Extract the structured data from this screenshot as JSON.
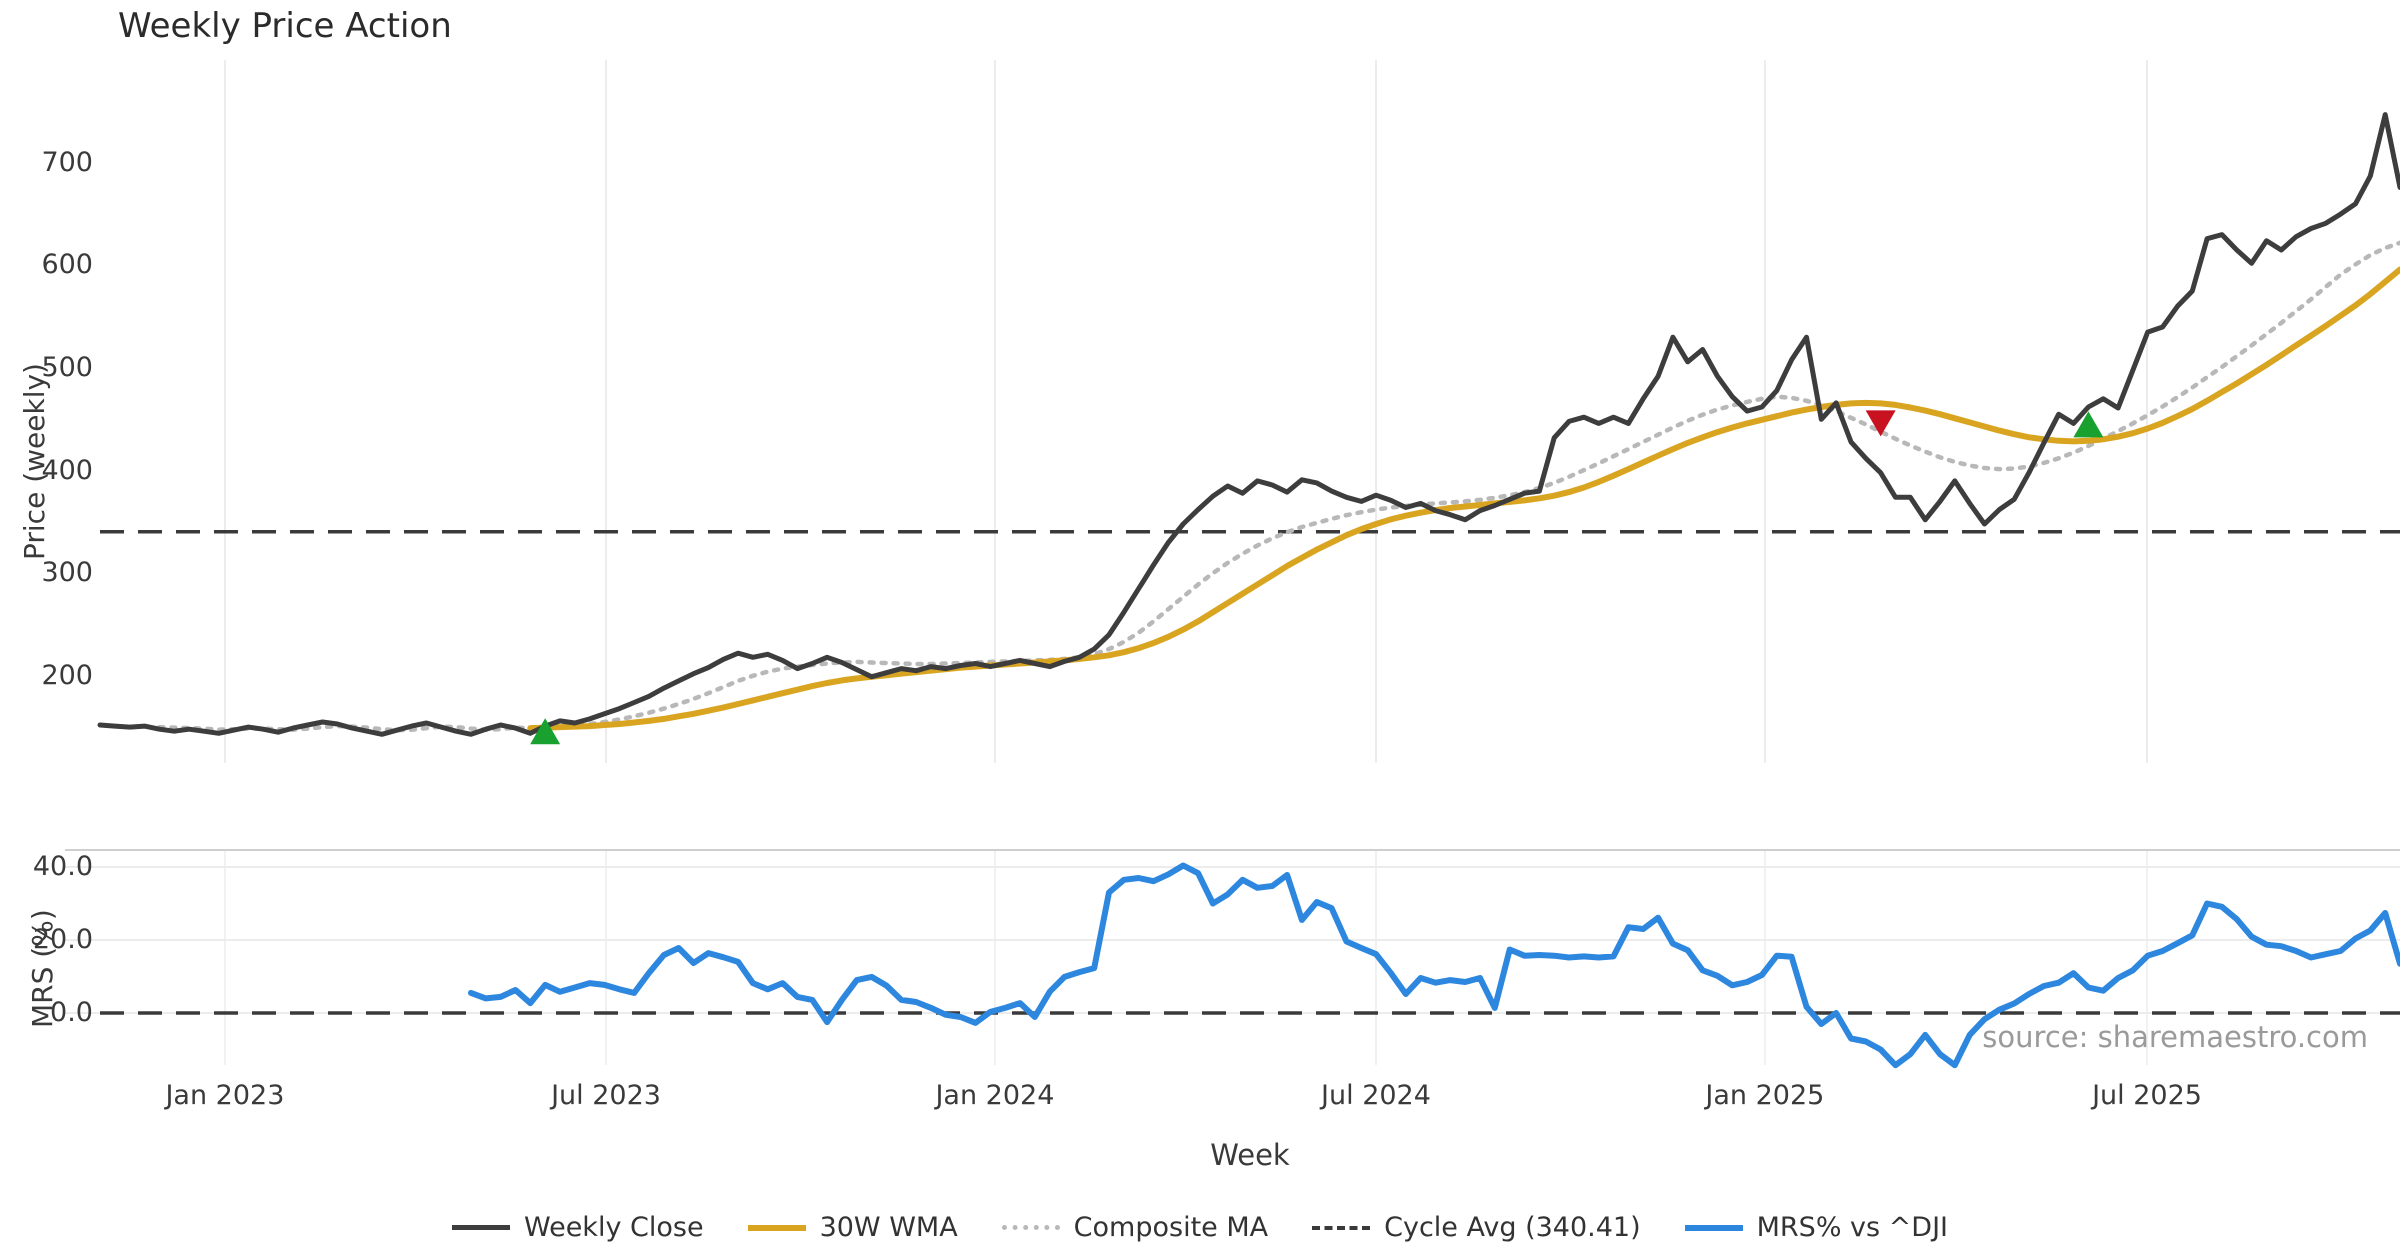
{
  "title": "Weekly Price Action",
  "source_note": "source: sharemaestro.com",
  "colors": {
    "close": "#3d3d3d",
    "wma": "#d9a521",
    "composite": "#b8b8b8",
    "cycle_avg": "#3a3a3a",
    "mrs": "#2e87de",
    "buy_marker": "#18a12e",
    "sell_marker": "#c81220",
    "grid": "#ececec",
    "grid_faint": "#f1f1f1",
    "panel_border": "#cfcfcf",
    "tick_text": "#3a3a3a"
  },
  "legend": {
    "items": [
      {
        "label": "Weekly Close",
        "swatch": "sw-close"
      },
      {
        "label": "30W WMA",
        "swatch": "sw-wma"
      },
      {
        "label": "Composite MA",
        "swatch": "sw-comp"
      },
      {
        "label": "Cycle Avg (340.41)",
        "swatch": "sw-cycle"
      },
      {
        "label": "MRS% vs ^DJI",
        "swatch": "sw-mrs"
      }
    ]
  },
  "chart_data": {
    "type": "line",
    "xlabel": "Week",
    "x_unit": "weekly",
    "n_weeks": 156,
    "x_range_note": "weekly data from early Nov 2022 to late Oct 2025",
    "x_ticks": [
      {
        "label": "Jan 2023",
        "week": 8.42
      },
      {
        "label": "Jul 2023",
        "week": 34.1
      },
      {
        "label": "Jan 2024",
        "week": 60.31
      },
      {
        "label": "Jul 2024",
        "week": 85.99
      },
      {
        "label": "Jan 2025",
        "week": 112.2
      },
      {
        "label": "Jul 2025",
        "week": 137.95
      }
    ],
    "panels": [
      {
        "name": "price",
        "ylabel": "Price (weekly)",
        "ylim": [
          115,
          800
        ],
        "yticks": [
          200,
          300,
          400,
          500,
          600,
          700
        ],
        "grid": "vertical",
        "cycle_avg": 340.41,
        "series": [
          {
            "name": "Weekly Close",
            "style": "solid",
            "width": 5,
            "color_key": "close",
            "start_week": 0,
            "values": [
              152,
              151,
              150,
              151,
              148,
              146,
              148,
              146,
              144,
              147,
              150,
              148,
              145,
              149,
              152,
              155,
              153,
              149,
              146,
              143,
              147,
              151,
              154,
              150,
              146,
              143,
              148,
              152,
              149,
              144,
              151,
              156,
              154,
              158,
              163,
              168,
              174,
              180,
              188,
              195,
              202,
              208,
              216,
              222,
              218,
              221,
              215,
              207,
              212,
              218,
              213,
              206,
              199,
              203,
              207,
              205,
              209,
              207,
              210,
              212,
              209,
              212,
              215,
              212,
              209,
              214,
              218,
              226,
              240,
              262,
              285,
              308,
              330,
              348,
              362,
              375,
              385,
              378,
              390,
              386,
              379,
              391,
              388,
              380,
              374,
              370,
              376,
              371,
              364,
              368,
              361,
              357,
              352,
              361,
              366,
              372,
              378,
              380,
              432,
              448,
              452,
              446,
              452,
              446,
              470,
              492,
              530,
              506,
              518,
              492,
              472,
              458,
              462,
              478,
              508,
              530,
              450,
              466,
              428,
              412,
              398,
              374,
              374,
              352,
              370,
              390,
              368,
              348,
              362,
              372,
              398,
              427,
              455,
              446,
              462,
              470,
              461,
              498,
              535,
              540,
              560,
              575,
              626,
              630,
              615,
              602,
              624,
              615,
              628,
              636,
              641,
              650,
              660,
              687,
              747,
              676
            ]
          },
          {
            "name": "30W WMA",
            "style": "solid",
            "width": 6,
            "color_key": "wma",
            "start_week": 29,
            "values": [
              149,
              149.5,
              150,
              150.5,
              151,
              152,
              153,
              154.5,
              156,
              158,
              160.5,
              163,
              166,
              169,
              172.5,
              176,
              179.5,
              183,
              186.5,
              190,
              193,
              195.5,
              197.5,
              199,
              200.5,
              202,
              203.5,
              205,
              206.5,
              208,
              209,
              210,
              211,
              212,
              213,
              214,
              215,
              216.5,
              218,
              220,
              223,
              227,
              232,
              238,
              245,
              253,
              262,
              271,
              280,
              289,
              298,
              307,
              315,
              323,
              330,
              337,
              343,
              348,
              352.5,
              356,
              359,
              361.5,
              363.5,
              365,
              366.5,
              368,
              369.5,
              371,
              373,
              375.5,
              379,
              383.5,
              389,
              395,
              401.5,
              408,
              414.5,
              421,
              427,
              432.5,
              437.5,
              442,
              446,
              449.5,
              453,
              456.5,
              459.5,
              462,
              464,
              465.5,
              466,
              465.5,
              464,
              461.5,
              458.5,
              455,
              451,
              447,
              443,
              439,
              435.5,
              432.5,
              430.5,
              429,
              428.5,
              429,
              430.5,
              433,
              436.5,
              441,
              446.5,
              453,
              460,
              468,
              476.5,
              485,
              494,
              503,
              512.5,
              522,
              531.5,
              541,
              551,
              561,
              572,
              584,
              596
            ]
          },
          {
            "name": "Composite MA",
            "style": "dotted",
            "width": 4.5,
            "color_key": "composite",
            "start_week": 4,
            "values": [
              150,
              149.5,
              149,
              148.5,
              147.5,
              148,
              148.5,
              148.5,
              148,
              147.5,
              148.5,
              150,
              151,
              150.5,
              149.5,
              148,
              147,
              147.5,
              149,
              150.5,
              150,
              148.5,
              147.5,
              148,
              149.5,
              149,
              149.5,
              150.5,
              151.5,
              153,
              155,
              157.5,
              160.5,
              164,
              168,
              172.5,
              177.5,
              183,
              189,
              195,
              200,
              204,
              207,
              209,
              210.5,
              212,
              213,
              213.5,
              213,
              212.5,
              212,
              211.5,
              211.5,
              212,
              212.5,
              213,
              213.5,
              214,
              214.5,
              215,
              215.5,
              216.5,
              218,
              221,
              226,
              233,
              242,
              253,
              265,
              277,
              289,
              300,
              310,
              319,
              327,
              334,
              340,
              345,
              349,
              353,
              356.5,
              359.5,
              362,
              364,
              365.5,
              367,
              368,
              369,
              370,
              371.5,
              373.5,
              376,
              379,
              383,
              388,
              394,
              400.5,
              407,
              414,
              421,
              428,
              435,
              442,
              448.5,
              454.5,
              459.5,
              463.5,
              467,
              470,
              472,
              471,
              468,
              463.5,
              458,
              451.5,
              445,
              438,
              431,
              424.5,
              418.5,
              413,
              408.5,
              405,
              402.5,
              401.5,
              402,
              404,
              407.5,
              412,
              417.5,
              424,
              431,
              438.5,
              446,
              454,
              462.5,
              471.5,
              481,
              491,
              501,
              511.5,
              522,
              533,
              544,
              555.5,
              567,
              579,
              591,
              601,
              610,
              617,
              622
            ]
          }
        ],
        "markers": [
          {
            "type": "buy",
            "shape": "triangle-up",
            "week": 30,
            "value": 146
          },
          {
            "type": "sell",
            "shape": "triangle-down",
            "week": 120,
            "value": 446
          },
          {
            "type": "buy",
            "shape": "triangle-up",
            "week": 134,
            "value": 445
          }
        ]
      },
      {
        "name": "mrs",
        "ylabel": "MRS (%)",
        "ylim": [
          -23,
          44.5
        ],
        "yticks": [
          0.0,
          20.0,
          40.0
        ],
        "ytick_labels": [
          "0.0",
          "20.0",
          "40.0"
        ],
        "zero_line_dashed": true,
        "series": [
          {
            "name": "MRS% vs ^DJI",
            "style": "solid",
            "width": 6,
            "color_key": "mrs",
            "start_week": 25,
            "values": [
              5.5,
              4.0,
              4.4,
              6.3,
              2.7,
              7.7,
              5.8,
              7.0,
              8.2,
              7.7,
              6.5,
              5.5,
              11.0,
              15.9,
              17.8,
              13.7,
              16.4,
              15.3,
              14.0,
              8.2,
              6.5,
              8.2,
              4.4,
              3.6,
              -2.5,
              3.6,
              9.0,
              9.9,
              7.5,
              3.6,
              3.0,
              1.4,
              -0.5,
              -1.1,
              -2.7,
              0.3,
              1.4,
              2.7,
              -1.1,
              5.8,
              9.9,
              11.2,
              12.3,
              33.0,
              36.5,
              37.0,
              36.1,
              38.0,
              40.4,
              38.3,
              30.0,
              32.5,
              36.5,
              34.3,
              34.8,
              37.8,
              25.5,
              30.4,
              28.7,
              19.6,
              17.8,
              16.1,
              10.9,
              5.2,
              9.6,
              8.3,
              9.0,
              8.5,
              9.6,
              1.4,
              17.4,
              15.7,
              15.9,
              15.7,
              15.2,
              15.5,
              15.2,
              15.5,
              23.5,
              23.0,
              26.1,
              19.0,
              17.2,
              11.7,
              10.2,
              7.6,
              8.5,
              10.4,
              15.7,
              15.4,
              1.7,
              -3.0,
              0.0,
              -7.0,
              -7.8,
              -10.0,
              -14.3,
              -11.3,
              -6.0,
              -11.3,
              -14.3,
              -6.0,
              -1.7,
              0.9,
              2.6,
              5.2,
              7.4,
              8.3,
              10.9,
              7.0,
              6.1,
              9.6,
              11.7,
              15.7,
              17.0,
              19.1,
              21.3,
              30.0,
              29.1,
              25.7,
              20.9,
              18.7,
              18.3,
              17.0,
              15.2,
              16.1,
              17.0,
              20.4,
              22.6,
              27.4,
              13.5
            ]
          }
        ]
      }
    ]
  }
}
